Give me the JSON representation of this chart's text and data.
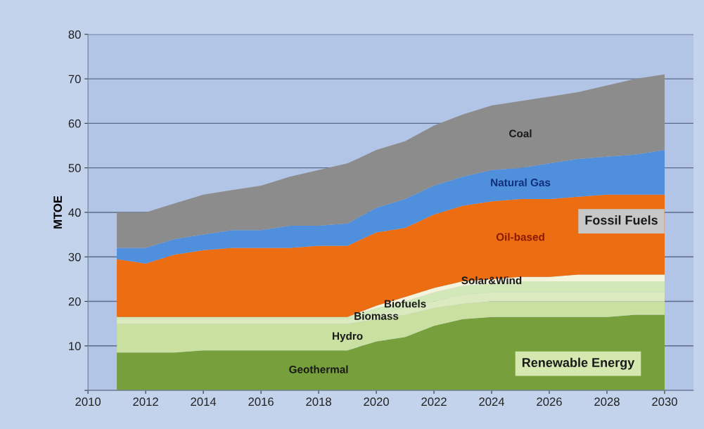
{
  "chart_data": {
    "type": "area",
    "stacked": true,
    "ylabel": "MTOE",
    "x": [
      2011,
      2012,
      2013,
      2014,
      2015,
      2016,
      2017,
      2018,
      2019,
      2020,
      2021,
      2022,
      2023,
      2024,
      2025,
      2026,
      2027,
      2028,
      2029,
      2030
    ],
    "series": [
      {
        "name": "Geothermal",
        "color": "#77a03c",
        "values": [
          8.5,
          8.5,
          8.5,
          9,
          9,
          9,
          9,
          9,
          9,
          11,
          12,
          14.5,
          16,
          16.5,
          16.5,
          16.5,
          16.5,
          16.5,
          17,
          17
        ]
      },
      {
        "name": "Hydro",
        "color": "#c9e0a0",
        "values": [
          6.5,
          6.5,
          6.5,
          6,
          6,
          6,
          6,
          6,
          6,
          5,
          5,
          4,
          3.5,
          3.5,
          3.5,
          3.5,
          3.5,
          3.5,
          3,
          3
        ]
      },
      {
        "name": "Biomass",
        "color": "#dceac0",
        "values": [
          1,
          1,
          1,
          1,
          1,
          1,
          1,
          1,
          1,
          1,
          1.5,
          1.5,
          2,
          2,
          2,
          2,
          2,
          2,
          2,
          2
        ]
      },
      {
        "name": "Biofuels",
        "color": "#d3e8b8",
        "values": [
          0.5,
          0.5,
          0.5,
          0.5,
          0.5,
          0.5,
          0.5,
          0.5,
          0.5,
          1.5,
          1.5,
          2,
          2,
          2,
          2.5,
          2.5,
          2.5,
          2.5,
          2.5,
          2.5
        ]
      },
      {
        "name": "Solar&Wind",
        "color": "#f4f4dc",
        "values": [
          0,
          0,
          0,
          0,
          0,
          0,
          0,
          0,
          0,
          0.5,
          1,
          1,
          1,
          1,
          1,
          1,
          1.5,
          1.5,
          1.5,
          1.5
        ]
      },
      {
        "name": "Oil-based",
        "color": "#ec6d12",
        "values": [
          13,
          12,
          14,
          15,
          15.5,
          15.5,
          15.5,
          16,
          16,
          16.5,
          15.5,
          16.5,
          17,
          17.5,
          17.5,
          17.5,
          17.5,
          18,
          18,
          18
        ]
      },
      {
        "name": "Natural Gas",
        "color": "#4f8fdc",
        "values": [
          2.5,
          3.5,
          3.5,
          3.5,
          4,
          4,
          5,
          4.5,
          5,
          5.5,
          6.5,
          6.5,
          6.5,
          7,
          7,
          8,
          8.5,
          8.5,
          9,
          10
        ]
      },
      {
        "name": "Coal",
        "color": "#8c8c8c",
        "values": [
          8,
          8,
          8,
          9,
          9,
          10,
          11,
          12.5,
          13.5,
          13,
          13,
          13.5,
          14,
          14.5,
          15,
          15,
          15,
          16,
          17,
          17
        ]
      }
    ],
    "xlim": [
      2010,
      2031
    ],
    "xticks": [
      2010,
      2012,
      2014,
      2016,
      2018,
      2020,
      2022,
      2024,
      2026,
      2028,
      2030
    ],
    "ylim": [
      0,
      80
    ],
    "yticks": [
      {
        "value": 0,
        "label": null
      },
      10,
      20,
      30,
      40,
      50,
      60,
      70,
      80
    ],
    "grid": "y",
    "legend": false,
    "annotations": [
      "Fossil Fuels",
      "Renewable Energy"
    ]
  }
}
